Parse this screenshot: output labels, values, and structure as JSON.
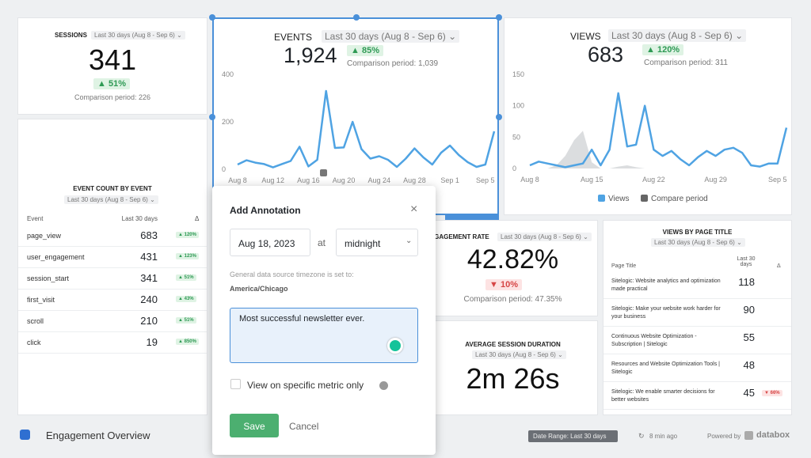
{
  "sessions": {
    "title": "SESSIONS",
    "range": "Last 30 days (Aug 8 - Sep 6)",
    "value": 341,
    "change": "51%",
    "comparison": "Comparison period: 226"
  },
  "events": {
    "title": "EVENTS",
    "range": "Last 30 days (Aug 8 - Sep 6)",
    "value": "1,924",
    "change": "85%",
    "comparison": "Comparison period: 1,039"
  },
  "views": {
    "title": "VIEWS",
    "range": "Last 30 days (Aug 8 - Sep 6)",
    "value": 683,
    "change": "120%",
    "comparison": "Comparison period: 311"
  },
  "chart_data": [
    {
      "type": "line",
      "categories": [
        "Aug 8",
        null,
        null,
        null,
        "Aug 12",
        null,
        null,
        null,
        "Aug 16",
        null,
        null,
        null,
        "Aug 20",
        null,
        null,
        null,
        "Aug 24",
        null,
        null,
        null,
        "Aug 28",
        null,
        null,
        null,
        "Sep 1",
        null,
        null,
        null,
        "Sep 5",
        null
      ],
      "values": [
        20,
        38,
        28,
        22,
        8,
        22,
        35,
        95,
        12,
        40,
        330,
        90,
        92,
        200,
        85,
        45,
        55,
        40,
        10,
        45,
        88,
        50,
        20,
        70,
        100,
        60,
        30,
        10,
        20,
        160
      ],
      "color": "#4fa3e3",
      "ylim": [
        0,
        400
      ],
      "yticks": [
        0,
        200,
        400
      ]
    },
    {
      "type": "line",
      "categories": [
        "Aug 8",
        null,
        null,
        null,
        null,
        null,
        null,
        "Aug 15",
        null,
        null,
        null,
        null,
        null,
        null,
        "Aug 22",
        null,
        null,
        null,
        null,
        null,
        null,
        "Aug 29",
        null,
        null,
        null,
        null,
        null,
        null,
        "Sep 5",
        null
      ],
      "series": [
        {
          "name": "Views",
          "color": "#4fa3e3",
          "values": [
            5,
            11,
            8,
            5,
            2,
            5,
            8,
            30,
            5,
            30,
            120,
            35,
            38,
            100,
            30,
            20,
            28,
            15,
            5,
            18,
            28,
            20,
            30,
            33,
            25,
            5,
            3,
            8,
            8,
            65
          ]
        },
        {
          "name": "Compare period",
          "color": "#d2d4d7",
          "values": [
            0,
            0,
            0,
            5,
            20,
            45,
            60,
            10,
            0,
            0,
            3,
            5,
            2,
            0,
            0,
            0,
            0,
            0,
            0,
            0,
            0,
            0,
            0,
            0,
            0,
            0,
            0,
            0,
            0,
            0
          ]
        }
      ],
      "ylim": [
        0,
        150
      ],
      "yticks": [
        0,
        50,
        100,
        150
      ]
    }
  ],
  "event_count": {
    "title": "EVENT COUNT BY EVENT",
    "range": "Last 30 days (Aug 8 - Sep 6)",
    "columns": [
      "Event",
      "Last 30 days",
      "Δ"
    ],
    "rows": [
      {
        "name": "page_view",
        "value": 683,
        "change": "120%"
      },
      {
        "name": "user_engagement",
        "value": 431,
        "change": "123%"
      },
      {
        "name": "session_start",
        "value": 341,
        "change": "51%"
      },
      {
        "name": "first_visit",
        "value": 240,
        "change": "43%"
      },
      {
        "name": "scroll",
        "value": 210,
        "change": "51%"
      },
      {
        "name": "click",
        "value": 19,
        "change": "850%"
      }
    ]
  },
  "engagement_rate": {
    "title": "ENGAGEMENT RATE",
    "range": "Last 30 days (Aug 8 - Sep 6)",
    "value": "42.82%",
    "change": "10%",
    "comparison": "Comparison period: 47.35%"
  },
  "avg_session": {
    "title": "AVERAGE SESSION DURATION",
    "range": "Last 30 days (Aug 8 - Sep 6)",
    "value": "2m 26s"
  },
  "page_views": {
    "title": "VIEWS BY PAGE TITLE",
    "range": "Last 30 days (Aug 8 - Sep 6)",
    "columns": [
      "Page Title",
      "Last 30 days",
      "Δ"
    ],
    "rows": [
      {
        "name": "Sitelogic: Website analytics and optimization made practical",
        "value": 118
      },
      {
        "name": "Sitelogic: Make your website work harder for your business",
        "value": 90
      },
      {
        "name": "Continuous Website Optimization - Subscription | Sitelogic",
        "value": 55
      },
      {
        "name": "Resources and Website Optimization Tools | Sitelogic",
        "value": 48
      },
      {
        "name": "Sitelogic: We enable smarter decisions for better websites",
        "value": 45,
        "change": "66%"
      }
    ]
  },
  "footer": {
    "title": "Engagement Overview",
    "date_range": "Date Range: Last 30 days",
    "updated": "8 min ago",
    "powered": "Powered by",
    "brand": "databox"
  },
  "annotation": {
    "title": "Add Annotation",
    "date": "Aug 18, 2023",
    "at": "at",
    "time": "midnight",
    "timezone_note": "General data source timezone is set to:",
    "timezone": "America/Chicago",
    "text": "Most successful newsletter ever.",
    "checkbox": "View on specific metric only",
    "save": "Save",
    "cancel": "Cancel"
  }
}
